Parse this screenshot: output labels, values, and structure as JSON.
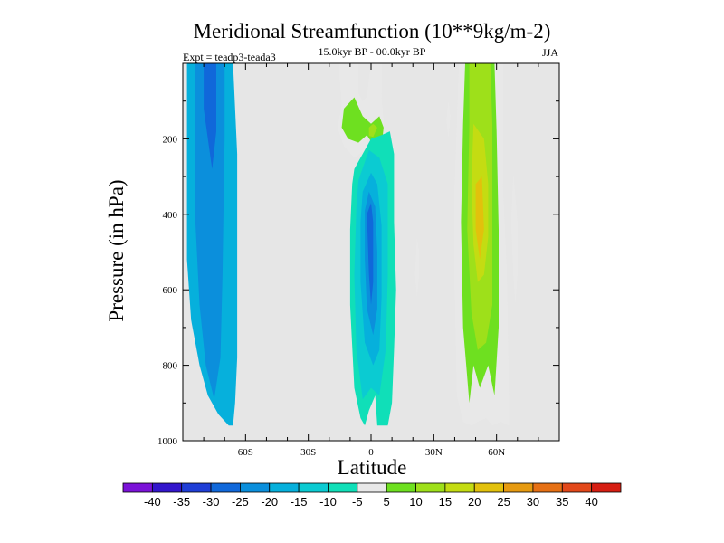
{
  "chart_data": {
    "type": "heatmap",
    "title": "Meridional Streamfunction (10**9kg/m-2)",
    "subtitle": "15.0kyr BP - 00.0kyr BP",
    "left_label": "Expt = teadp3-teada3",
    "right_label": "JJA",
    "xlabel": "Latitude",
    "ylabel": "Pressure (in hPa)",
    "xlim": [
      -90,
      90
    ],
    "ylim": [
      1000,
      0
    ],
    "xticks": [
      {
        "value": -60,
        "label": "60S"
      },
      {
        "value": -30,
        "label": "30S"
      },
      {
        "value": 0,
        "label": "0"
      },
      {
        "value": 30,
        "label": "30N"
      },
      {
        "value": 60,
        "label": "60N"
      }
    ],
    "yticks": [
      {
        "value": 200,
        "label": "200"
      },
      {
        "value": 400,
        "label": "400"
      },
      {
        "value": 600,
        "label": "600"
      },
      {
        "value": 800,
        "label": "800"
      },
      {
        "value": 1000,
        "label": "1000"
      }
    ],
    "background_color": "#e6e6e6",
    "colorbar": {
      "levels": [
        "-40",
        "-35",
        "-30",
        "-25",
        "-20",
        "-15",
        "-10",
        "-5",
        "5",
        "10",
        "15",
        "20",
        "25",
        "30",
        "35",
        "40"
      ],
      "colors": [
        "#7b12d8",
        "#3316cc",
        "#1f3ed6",
        "#1068da",
        "#0b8fdc",
        "#06b0dc",
        "#0bcbd2",
        "#10dfb8",
        "#e8e8e8",
        "#6ee020",
        "#9ee01a",
        "#c4dc12",
        "#e2c10c",
        "#e69a10",
        "#e67014",
        "#e2481a",
        "#d61e12"
      ]
    },
    "regions": [
      {
        "name": "sh-cell-outer",
        "level": -15,
        "points": [
          [
            -87,
            0
          ],
          [
            -66,
            0
          ],
          [
            -64,
            240
          ],
          [
            -64,
            780
          ],
          [
            -65,
            900
          ],
          [
            -66,
            960
          ],
          [
            -68,
            960
          ],
          [
            -73,
            930
          ],
          [
            -78,
            880
          ],
          [
            -82,
            800
          ],
          [
            -86,
            680
          ],
          [
            -88,
            520
          ],
          [
            -88,
            300
          ],
          [
            -88,
            0
          ]
        ]
      },
      {
        "name": "sh-cell-mid",
        "level": -20,
        "points": [
          [
            -84,
            0
          ],
          [
            -70,
            0
          ],
          [
            -70,
            200
          ],
          [
            -71,
            560
          ],
          [
            -72,
            780
          ],
          [
            -75,
            890
          ],
          [
            -79,
            800
          ],
          [
            -82,
            640
          ],
          [
            -84,
            420
          ],
          [
            -84,
            0
          ]
        ]
      },
      {
        "name": "sh-cell-core",
        "level": -25,
        "points": [
          [
            -80,
            0
          ],
          [
            -74,
            0
          ],
          [
            -74,
            180
          ],
          [
            -76,
            280
          ],
          [
            -78,
            200
          ],
          [
            -80,
            120
          ]
        ]
      },
      {
        "name": "trop-upper-outer",
        "level": 5,
        "points": [
          [
            -15,
            0
          ],
          [
            -6,
            0
          ],
          [
            -6,
            80
          ],
          [
            -4,
            100
          ],
          [
            -2,
            90
          ],
          [
            -1,
            40
          ],
          [
            0,
            0
          ],
          [
            5,
            0
          ],
          [
            5,
            90
          ],
          [
            6,
            150
          ],
          [
            6,
            200
          ],
          [
            4,
            250
          ],
          [
            1,
            240
          ],
          [
            -1,
            190
          ],
          [
            -3,
            230
          ],
          [
            -8,
            250
          ],
          [
            -13,
            220
          ],
          [
            -16,
            170
          ],
          [
            -14,
            110
          ],
          [
            -15,
            40
          ]
        ]
      },
      {
        "name": "trop-upper-mid",
        "level": 10,
        "points": [
          [
            -13,
            120
          ],
          [
            -8,
            90
          ],
          [
            -4,
            140
          ],
          [
            0,
            160
          ],
          [
            4,
            140
          ],
          [
            6,
            170
          ],
          [
            5,
            220
          ],
          [
            1,
            215
          ],
          [
            -2,
            190
          ],
          [
            -6,
            210
          ],
          [
            -11,
            200
          ],
          [
            -14,
            170
          ]
        ]
      },
      {
        "name": "trop-upper-core",
        "level": 15,
        "points": [
          [
            -1,
            170
          ],
          [
            1,
            160
          ],
          [
            3,
            170
          ],
          [
            1,
            195
          ],
          [
            -1,
            192
          ]
        ]
      },
      {
        "name": "sh-cell-trop-outer",
        "level": -5,
        "points": [
          [
            -8,
            280
          ],
          [
            0,
            200
          ],
          [
            5,
            190
          ],
          [
            9,
            180
          ],
          [
            11,
            240
          ],
          [
            11,
            420
          ],
          [
            12,
            600
          ],
          [
            11,
            760
          ],
          [
            10,
            900
          ],
          [
            8,
            960
          ],
          [
            3,
            960
          ],
          [
            2,
            880
          ],
          [
            -1,
            920
          ],
          [
            -3,
            960
          ],
          [
            -5,
            940
          ],
          [
            -8,
            860
          ],
          [
            -10,
            640
          ],
          [
            -10,
            440
          ],
          [
            -9,
            320
          ]
        ]
      },
      {
        "name": "sh-cell-trop-10",
        "level": -10,
        "points": [
          [
            -6,
            310
          ],
          [
            -1,
            230
          ],
          [
            4,
            250
          ],
          [
            8,
            320
          ],
          [
            8,
            560
          ],
          [
            7,
            760
          ],
          [
            4,
            880
          ],
          [
            0,
            860
          ],
          [
            -4,
            890
          ],
          [
            -7,
            760
          ],
          [
            -8,
            560
          ],
          [
            -7,
            380
          ]
        ]
      },
      {
        "name": "sh-cell-trop-15",
        "level": -15,
        "points": [
          [
            -4,
            340
          ],
          [
            0,
            290
          ],
          [
            3,
            320
          ],
          [
            5,
            430
          ],
          [
            5,
            620
          ],
          [
            4,
            760
          ],
          [
            1,
            800
          ],
          [
            -3,
            740
          ],
          [
            -5,
            580
          ],
          [
            -5,
            420
          ]
        ]
      },
      {
        "name": "sh-cell-trop-20",
        "level": -20,
        "points": [
          [
            -3,
            390
          ],
          [
            -1,
            340
          ],
          [
            2,
            380
          ],
          [
            3,
            500
          ],
          [
            3,
            650
          ],
          [
            1,
            720
          ],
          [
            -2,
            650
          ],
          [
            -3,
            520
          ]
        ]
      },
      {
        "name": "sh-cell-trop-25",
        "level": -25,
        "points": [
          [
            -2,
            400
          ],
          [
            0,
            370
          ],
          [
            1,
            420
          ],
          [
            1,
            580
          ],
          [
            0,
            640
          ],
          [
            -1,
            560
          ]
        ]
      },
      {
        "name": "nh-thin-upper",
        "level": 5,
        "points": [
          [
            37,
            100
          ],
          [
            38,
            140
          ],
          [
            37,
            200
          ],
          [
            36,
            150
          ]
        ]
      },
      {
        "name": "nh-thin-mid",
        "level": 5,
        "points": [
          [
            22,
            460
          ],
          [
            23,
            500
          ],
          [
            23,
            560
          ],
          [
            22,
            620
          ],
          [
            21,
            560
          ]
        ]
      },
      {
        "name": "nh-cell-outer",
        "level": 5,
        "points": [
          [
            42,
            0
          ],
          [
            63,
            0
          ],
          [
            63,
            320
          ],
          [
            65,
            560
          ],
          [
            66,
            900
          ],
          [
            66,
            960
          ],
          [
            62,
            950
          ],
          [
            58,
            960
          ],
          [
            55,
            940
          ],
          [
            51,
            950
          ],
          [
            48,
            960
          ],
          [
            44,
            950
          ],
          [
            41,
            880
          ],
          [
            40,
            600
          ],
          [
            40,
            320
          ]
        ]
      },
      {
        "name": "nh-cell-mid",
        "level": 10,
        "points": [
          [
            45,
            0
          ],
          [
            59,
            0
          ],
          [
            60,
            180
          ],
          [
            61,
            440
          ],
          [
            61,
            700
          ],
          [
            59,
            880
          ],
          [
            56,
            800
          ],
          [
            52,
            860
          ],
          [
            49,
            800
          ],
          [
            47,
            900
          ],
          [
            44,
            700
          ],
          [
            43,
            420
          ],
          [
            44,
            160
          ]
        ]
      },
      {
        "name": "nh-cell-inner",
        "level": 15,
        "points": [
          [
            47,
            0
          ],
          [
            57,
            0
          ],
          [
            58,
            160
          ],
          [
            58,
            420
          ],
          [
            58,
            640
          ],
          [
            55,
            740
          ],
          [
            51,
            760
          ],
          [
            48,
            660
          ],
          [
            46,
            440
          ],
          [
            47,
            160
          ]
        ]
      },
      {
        "name": "nh-cell-core",
        "level": 20,
        "points": [
          [
            49,
            160
          ],
          [
            54,
            200
          ],
          [
            56,
            320
          ],
          [
            56,
            460
          ],
          [
            54,
            560
          ],
          [
            51,
            580
          ],
          [
            49,
            480
          ],
          [
            48,
            320
          ]
        ]
      },
      {
        "name": "nh-cell-core2",
        "level": 25,
        "points": [
          [
            50,
            320
          ],
          [
            53,
            300
          ],
          [
            54,
            440
          ],
          [
            52,
            520
          ],
          [
            50,
            440
          ]
        ]
      },
      {
        "name": "nh-edge-strip",
        "level": 5,
        "points": [
          [
            68,
            290
          ],
          [
            70,
            420
          ],
          [
            70,
            560
          ],
          [
            69,
            640
          ],
          [
            68,
            560
          ],
          [
            67,
            420
          ]
        ]
      }
    ]
  }
}
